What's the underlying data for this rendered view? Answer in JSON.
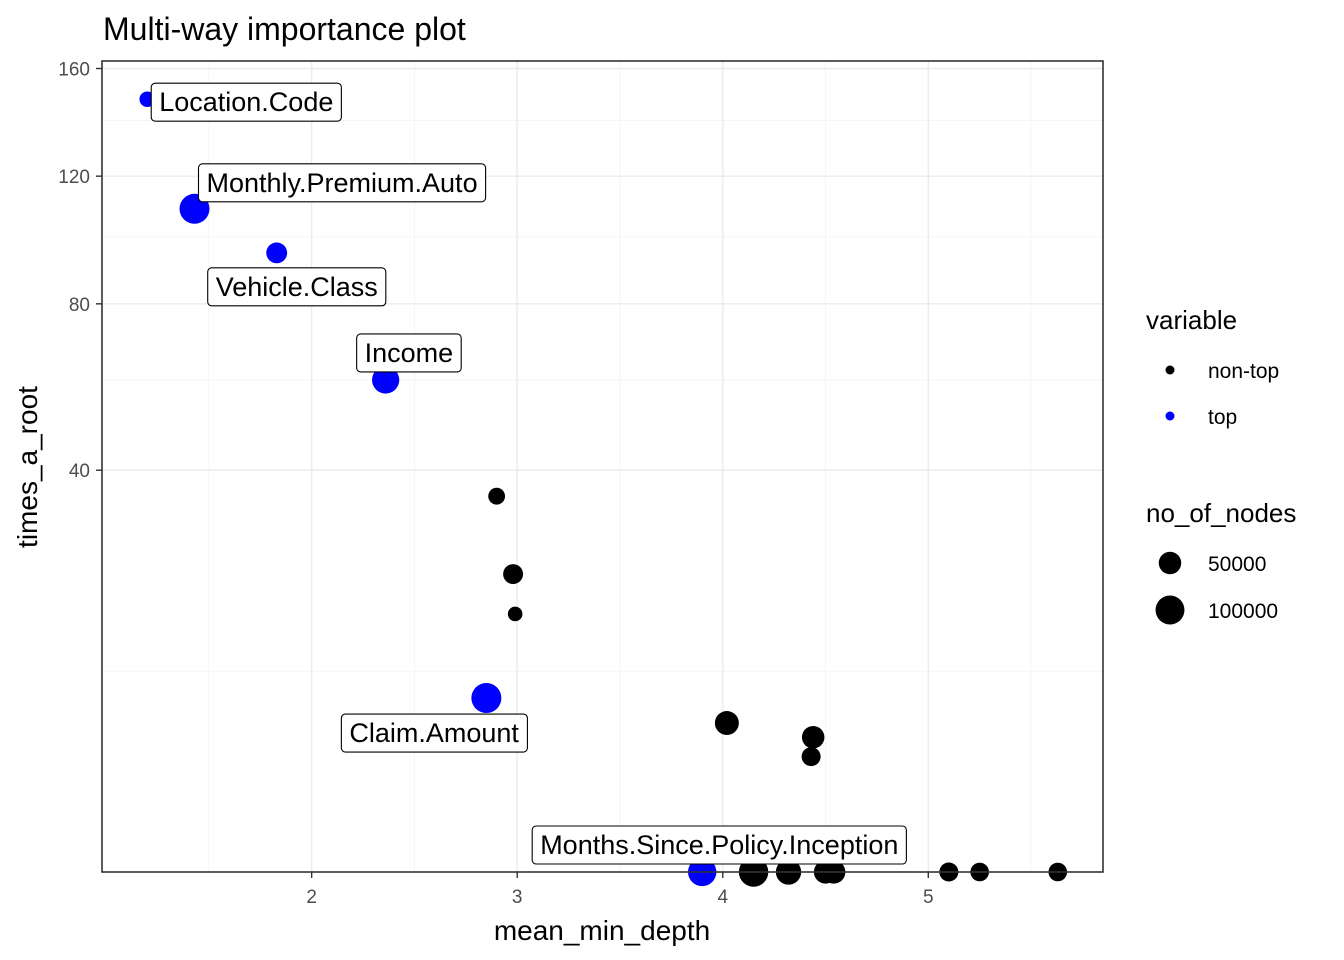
{
  "chart_data": {
    "type": "scatter",
    "title": "Multi-way importance plot",
    "xlabel": "mean_min_depth",
    "ylabel": "times_a_root",
    "y_scale": "sqrt",
    "xlim": [
      0.98,
      5.85
    ],
    "ylim": [
      0,
      163
    ],
    "x_ticks": [
      2,
      3,
      4,
      5
    ],
    "x_tick_labels": [
      "2",
      "3",
      "4",
      "5"
    ],
    "x_minor_ticks": [
      1.5,
      2.5,
      3.5,
      4.5,
      5.5
    ],
    "y_ticks": [
      40,
      80,
      120,
      160
    ],
    "y_tick_labels": [
      "40",
      "80",
      "120",
      "160"
    ],
    "y_minor_ticks": [
      10,
      60,
      100,
      140
    ],
    "grid": true,
    "colors": {
      "top": "#0000ff",
      "non-top": "#000000"
    },
    "points": [
      {
        "label": "Location.Code",
        "x": 1.2,
        "y": 148,
        "nodes": 15000,
        "variable": "top"
      },
      {
        "label": "Monthly.Premium.Auto",
        "x": 1.43,
        "y": 109,
        "nodes": 110000,
        "variable": "top"
      },
      {
        "label": "Vehicle.Class",
        "x": 1.83,
        "y": 95,
        "nodes": 40000,
        "variable": "top"
      },
      {
        "label": "Income",
        "x": 2.36,
        "y": 60,
        "nodes": 85000,
        "variable": "top"
      },
      {
        "label": "Claim.Amount",
        "x": 2.85,
        "y": 7.5,
        "nodes": 110000,
        "variable": "top"
      },
      {
        "label": "Months.Since.Policy.Inception",
        "x": 3.9,
        "y": 0,
        "nodes": 95000,
        "variable": "top"
      },
      {
        "label": "",
        "x": 2.9,
        "y": 35,
        "nodes": 20000,
        "variable": "non-top"
      },
      {
        "label": "",
        "x": 2.98,
        "y": 22,
        "nodes": 35000,
        "variable": "non-top"
      },
      {
        "label": "",
        "x": 2.99,
        "y": 16.5,
        "nodes": 12000,
        "variable": "non-top"
      },
      {
        "label": "",
        "x": 4.02,
        "y": 5.5,
        "nodes": 60000,
        "variable": "non-top"
      },
      {
        "label": "",
        "x": 4.44,
        "y": 4.5,
        "nodes": 50000,
        "variable": "non-top"
      },
      {
        "label": "",
        "x": 4.43,
        "y": 3.3,
        "nodes": 30000,
        "variable": "non-top"
      },
      {
        "label": "",
        "x": 4.15,
        "y": 0,
        "nodes": 105000,
        "variable": "non-top"
      },
      {
        "label": "",
        "x": 4.32,
        "y": 0,
        "nodes": 70000,
        "variable": "non-top"
      },
      {
        "label": "",
        "x": 4.5,
        "y": 0,
        "nodes": 55000,
        "variable": "non-top"
      },
      {
        "label": "",
        "x": 4.54,
        "y": 0,
        "nodes": 55000,
        "variable": "non-top"
      },
      {
        "label": "",
        "x": 5.1,
        "y": 0,
        "nodes": 30000,
        "variable": "non-top"
      },
      {
        "label": "",
        "x": 5.25,
        "y": 0,
        "nodes": 28000,
        "variable": "non-top"
      },
      {
        "label": "",
        "x": 5.63,
        "y": 0,
        "nodes": 28000,
        "variable": "non-top"
      }
    ],
    "legend": {
      "placement": "right",
      "color_title": "variable",
      "color_entries": [
        {
          "name": "non-top",
          "color": "#000000"
        },
        {
          "name": "top",
          "color": "#0000ff"
        }
      ],
      "size_title": "no_of_nodes",
      "size_entries": [
        {
          "name": "50000",
          "value": 50000
        },
        {
          "name": "100000",
          "value": 100000
        }
      ]
    }
  }
}
